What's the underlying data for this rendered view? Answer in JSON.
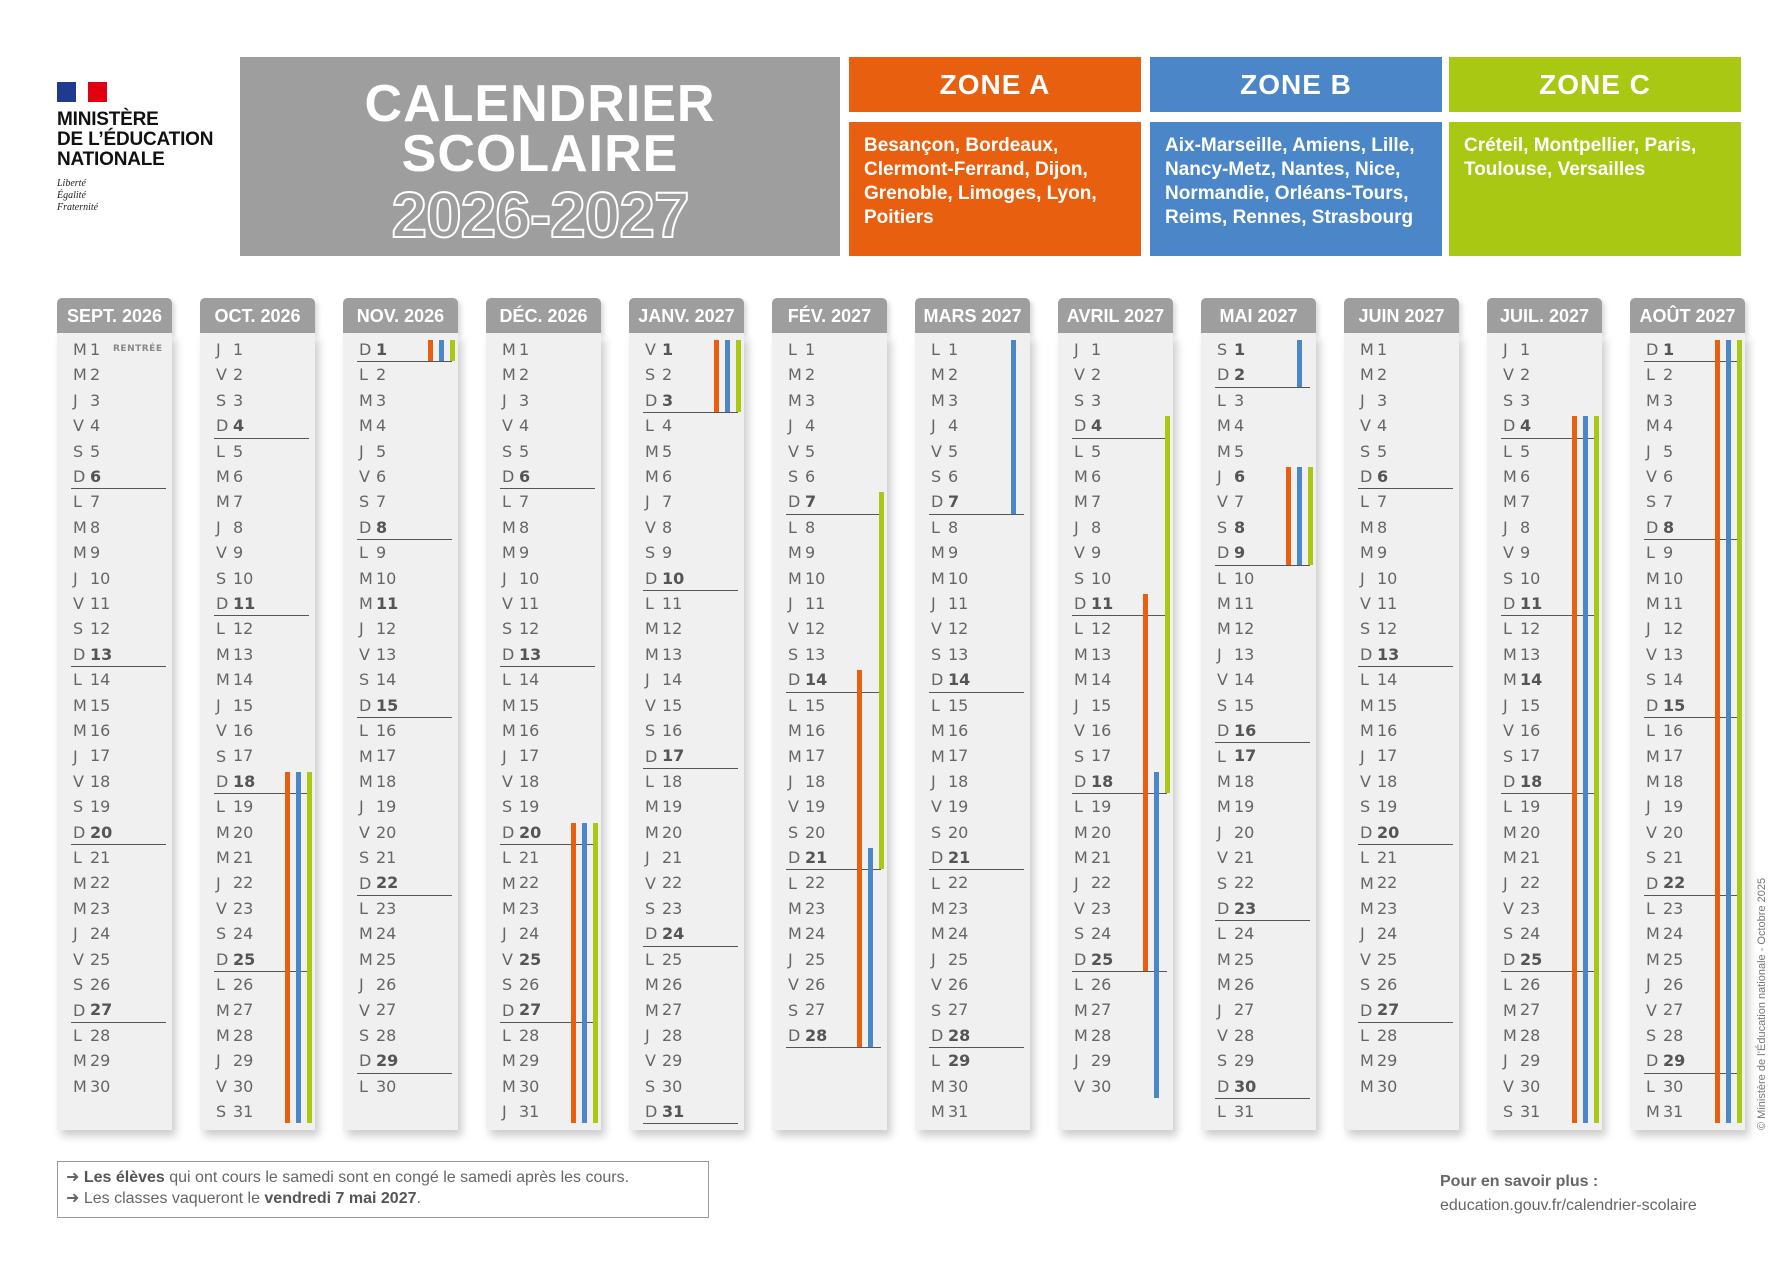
{
  "logo": {
    "ministry": "MINISTÈRE\nDE L’ÉDUCATION\nNATIONALE",
    "motto": "Liberté\nÉgalité\nFraternité"
  },
  "title": {
    "line1": "CALENDRIER",
    "line2": "SCOLAIRE",
    "years": "2026-2027",
    "color": "#9e9e9e"
  },
  "zones": [
    {
      "key": "A",
      "label": "ZONE A",
      "color": "#e8600f",
      "cities": "Besançon, Bordeaux, Clermont-Ferrand, Dijon, Grenoble, Limoges, Lyon, Poitiers"
    },
    {
      "key": "B",
      "label": "ZONE B",
      "color": "#4a86c8",
      "cities": "Aix-Marseille, Amiens, Lille, Nancy-Metz, Nantes, Nice, Normandie, Orléans-Tours, Reims, Rennes, Strasbourg"
    },
    {
      "key": "C",
      "label": "ZONE C",
      "color": "#a8c813",
      "cities": "Créteil, Montpellier, Paris, Toulouse, Versailles"
    }
  ],
  "months": [
    {
      "label": "SEPT. 2026",
      "weekdays": "MMJVSDLMMJVSDLMMJVSDLMMJVSDLMM",
      "bold_days": [],
      "notes": {
        "1": "RENTRÉE"
      },
      "holidays": {}
    },
    {
      "label": "OCT. 2026",
      "weekdays": "JVSDLMMJVSDLMMJVSDLMMJVSDLMMJVS",
      "bold_days": [],
      "holidays": {
        "A": [
          [
            18,
            31
          ]
        ],
        "B": [
          [
            18,
            31
          ]
        ],
        "C": [
          [
            18,
            31
          ]
        ]
      }
    },
    {
      "label": "NOV. 2026",
      "weekdays": "DLMMJVSDLMMJVSDLMMJVSDLMMJVSDL",
      "bold_days": [
        11
      ],
      "holidays": {
        "A": [
          [
            1,
            1
          ]
        ],
        "B": [
          [
            1,
            1
          ]
        ],
        "C": [
          [
            1,
            1
          ]
        ]
      }
    },
    {
      "label": "DÉC. 2026",
      "weekdays": "MMJVSDLMMJVSDLMMJVSDLMMJVSDLMMJ",
      "bold_days": [
        25
      ],
      "holidays": {
        "A": [
          [
            20,
            31
          ]
        ],
        "B": [
          [
            20,
            31
          ]
        ],
        "C": [
          [
            20,
            31
          ]
        ]
      }
    },
    {
      "label": "JANV. 2027",
      "weekdays": "VSDLMMJVSDLMMJVSDLMMJVSDLMMJVSD",
      "bold_days": [
        1
      ],
      "holidays": {
        "A": [
          [
            1,
            3
          ]
        ],
        "B": [
          [
            1,
            3
          ]
        ],
        "C": [
          [
            1,
            3
          ]
        ]
      }
    },
    {
      "label": "FÉV. 2027",
      "weekdays": "LMMJVSDLMMJVSDLMMJVSDLMMJVSD",
      "bold_days": [],
      "holidays": {
        "A": [
          [
            14,
            28
          ]
        ],
        "B": [
          [
            21,
            28
          ]
        ],
        "C": [
          [
            7,
            21
          ]
        ]
      }
    },
    {
      "label": "MARS 2027",
      "weekdays": "LMMJVSDLMMJVSDLMMJVSDLMMJVSDLMM",
      "bold_days": [
        29
      ],
      "holidays": {
        "B": [
          [
            1,
            7
          ]
        ]
      }
    },
    {
      "label": "AVRIL 2027",
      "weekdays": "JVSDLMMJVSDLMMJVSDLMMJVSDLMMJV",
      "bold_days": [],
      "holidays": {
        "A": [
          [
            11,
            25
          ]
        ],
        "B": [
          [
            18,
            30
          ]
        ],
        "C": [
          [
            4,
            18
          ]
        ]
      }
    },
    {
      "label": "MAI 2027",
      "weekdays": "SDLMMJVSDLMMJVSDLMMJVSDLMMJVSDL",
      "bold_days": [
        1,
        6,
        8,
        17
      ],
      "holidays": {
        "A": [
          [
            6,
            9
          ]
        ],
        "B": [
          [
            1,
            2
          ],
          [
            6,
            9
          ]
        ],
        "C": [
          [
            6,
            9
          ]
        ]
      }
    },
    {
      "label": "JUIN 2027",
      "weekdays": "MMJVSDLMMJVSDLMMJVSDLMMJVSDLMM",
      "bold_days": [],
      "holidays": {}
    },
    {
      "label": "JUIL. 2027",
      "weekdays": "JVSDLMMJVSDLMMJVSDLMMJVSDLMMJVS",
      "bold_days": [
        14
      ],
      "holidays": {
        "A": [
          [
            4,
            31
          ]
        ],
        "B": [
          [
            4,
            31
          ]
        ],
        "C": [
          [
            4,
            31
          ]
        ]
      }
    },
    {
      "label": "AOÛT 2027",
      "weekdays": "DLMMJVSDLMMJVSDLMMJVSDLMMJVSDLM",
      "bold_days": [],
      "holidays": {
        "A": [
          [
            1,
            31
          ]
        ],
        "B": [
          [
            1,
            31
          ]
        ],
        "C": [
          [
            1,
            31
          ]
        ]
      }
    }
  ],
  "footnote": {
    "line1_bold": "Les élèves",
    "line1_rest": " qui ont cours le samedi sont en congé le samedi après les cours.",
    "line2_start": "Les classes vaqueront le ",
    "line2_bold": "vendredi 7 mai 2027",
    "line2_end": ".",
    "arrow_icon": "arrow-right-icon"
  },
  "more_info": {
    "heading": "Pour en savoir plus :",
    "link": "education.gouv.fr/calendrier-scolaire"
  },
  "copyright": "© Ministère de l’Éducation nationale - Octobre 2025"
}
